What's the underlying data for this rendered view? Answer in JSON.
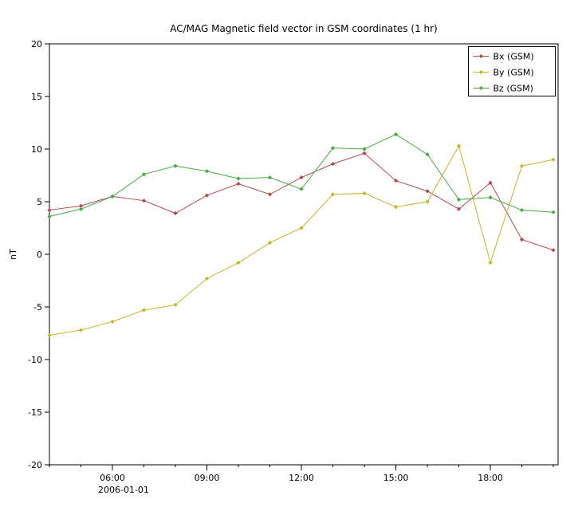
{
  "title": "AC/MAG  Magnetic field vector in GSM coordinates (1 hr)",
  "chart_data": {
    "type": "line",
    "title": "AC/MAG  Magnetic field vector in GSM coordinates (1 hr)",
    "xlabel": "",
    "ylabel": "nT",
    "ylim": [
      -20,
      20
    ],
    "yticks": [
      -20,
      -15,
      -10,
      -5,
      0,
      5,
      10,
      15,
      20
    ],
    "xlim": [
      4.0,
      20.15
    ],
    "x_date_label": "2006-01-01",
    "xticks": [
      {
        "hour": 6,
        "label": "06:00"
      },
      {
        "hour": 9,
        "label": "09:00"
      },
      {
        "hour": 12,
        "label": "12:00"
      },
      {
        "hour": 15,
        "label": "15:00"
      },
      {
        "hour": 18,
        "label": "18:00"
      }
    ],
    "x_hours": [
      4,
      5,
      6,
      7,
      8,
      9,
      10,
      11,
      12,
      13,
      14,
      15,
      16,
      17,
      18,
      19,
      20
    ],
    "grid": false,
    "legend_position": "top-right",
    "axis_color": "#000000",
    "series": [
      {
        "name": "Bx (GSM)",
        "color": "#b04a4a",
        "values": [
          4.2,
          4.6,
          5.5,
          5.1,
          3.9,
          5.6,
          6.7,
          5.7,
          7.3,
          8.6,
          9.6,
          7.0,
          6.0,
          4.3,
          6.8,
          1.4,
          0.4
        ]
      },
      {
        "name": "By (GSM)",
        "color": "#c3b42d",
        "values": [
          -7.7,
          -7.2,
          -6.4,
          -5.3,
          -4.8,
          -2.3,
          -0.8,
          1.1,
          2.5,
          5.7,
          5.8,
          4.5,
          5.0,
          10.3,
          -0.8,
          8.4,
          9.0
        ]
      },
      {
        "name": "Bz (GSM)",
        "color": "#44a944",
        "values": [
          3.6,
          4.3,
          5.5,
          7.6,
          8.4,
          7.9,
          7.2,
          7.3,
          6.2,
          10.1,
          10.0,
          11.4,
          9.5,
          5.2,
          5.4,
          4.2,
          4.0
        ]
      }
    ]
  }
}
